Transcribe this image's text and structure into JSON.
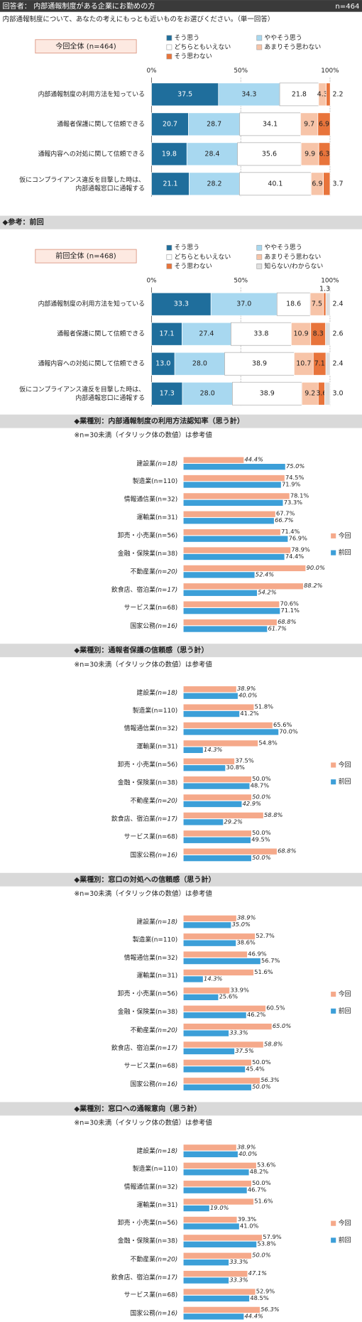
{
  "header": {
    "title": "回答者： 内部通報制度がある企業にお勤めの方",
    "n": "n=464"
  },
  "question": "内部通報制度について、あなたの考えにもっとも近いものをお選びください。（単一回答）",
  "chart_data": [
    {
      "type": "stacked_bar",
      "title": "今回全体 (n=464)",
      "categories": [
        "内部通報制度の利用方法を知っている",
        "通報者保護に関して信頼できる",
        "通報内容への対処に関して信頼できる",
        "仮にコンプライアンス違反を目撃した時は、\n内部通報窓口に通報する"
      ],
      "xlim": [
        0,
        100
      ],
      "xticks": [
        {
          "value": 0,
          "label": "0%"
        },
        {
          "value": 50,
          "label": "50%"
        },
        {
          "value": 100,
          "label": "100%"
        }
      ],
      "grid": true,
      "series": [
        {
          "name": "そう思う",
          "color": "#1f6e9c",
          "values": [
            37.5,
            20.7,
            19.8,
            21.1
          ],
          "value_labels": [
            "37.5",
            "20.7",
            "19.8",
            "21.1"
          ]
        },
        {
          "name": "ややそう思う",
          "color": "#a8d8f0",
          "values": [
            34.3,
            28.7,
            28.4,
            28.2
          ],
          "value_labels": [
            "34.3",
            "28.7",
            "28.4",
            "28.2"
          ]
        },
        {
          "name": "どちらともいえない",
          "color": "#ffffff",
          "values": [
            21.8,
            34.1,
            35.6,
            40.1
          ],
          "value_labels": [
            "21.8",
            "34.1",
            "35.6",
            "40.1"
          ]
        },
        {
          "name": "あまりそう思わない",
          "color": "#f7c4a8",
          "values": [
            4.3,
            9.7,
            9.9,
            6.9
          ],
          "value_labels": [
            "4.3",
            "9.7",
            "9.9",
            "6.9"
          ]
        },
        {
          "name": "そう思わない",
          "color": "#e8743b",
          "values": [
            2.2,
            6.9,
            6.3,
            3.7
          ],
          "value_labels": [
            "2.2",
            "6.9",
            "6.3",
            "3.7"
          ]
        }
      ]
    },
    {
      "type": "stacked_bar",
      "heading": "◆参考：前回",
      "title": "前回全体 (n=468)",
      "categories": [
        "内部通報制度の利用方法を知っている",
        "通報者保護に関して信頼できる",
        "通報内容への対処に関して信頼できる",
        "仮にコンプライアンス違反を目撃した時は、\n内部通報窓口に通報する"
      ],
      "xlim": [
        0,
        100
      ],
      "xticks": [
        {
          "value": 0,
          "label": "0%"
        },
        {
          "value": 50,
          "label": "50%"
        },
        {
          "value": 100,
          "label": "100%"
        }
      ],
      "grid": true,
      "series": [
        {
          "name": "そう思う",
          "color": "#1f6e9c",
          "values": [
            33.3,
            17.1,
            13.0,
            17.3
          ],
          "value_labels": [
            "33.3",
            "17.1",
            "13.0",
            "17.3"
          ]
        },
        {
          "name": "ややそう思う",
          "color": "#a8d8f0",
          "values": [
            37.0,
            27.4,
            28.0,
            28.0
          ],
          "value_labels": [
            "37.0",
            "27.4",
            "28.0",
            "28.0"
          ]
        },
        {
          "name": "どちらともいえない",
          "color": "#ffffff",
          "values": [
            18.6,
            33.8,
            38.9,
            38.9
          ],
          "value_labels": [
            "18.6",
            "33.8",
            "38.9",
            "38.9"
          ]
        },
        {
          "name": "あまりそう思わない",
          "color": "#f7c4a8",
          "values": [
            7.5,
            10.9,
            10.7,
            9.2
          ],
          "value_labels": [
            "7.5",
            "10.9",
            "10.7",
            "9.2"
          ]
        },
        {
          "name": "そう思わない",
          "color": "#e8743b",
          "values": [
            1.3,
            8.3,
            7.1,
            3.6
          ],
          "value_labels": [
            "1.3",
            "8.3",
            "7.1",
            "3.6"
          ]
        },
        {
          "name": "知らない/わからない",
          "color": "#e0e0e0",
          "values": [
            2.4,
            2.6,
            2.4,
            3.0
          ],
          "value_labels": [
            "2.4",
            "2.6",
            "2.4",
            "3.0"
          ]
        }
      ]
    },
    {
      "type": "bar",
      "title": "◆業種別：内部通報制度の利用方法認知率（思う計）",
      "note": "※n=30未満（イタリック体の数値）は参考値",
      "categories": [
        "建設業(n=18)",
        "製造業(n=110)",
        "情報通信業(n=32)",
        "運輸業(n=31)",
        "卸売・小売業(n=56)",
        "金融・保険業(n=38)",
        "不動産業(n=20)",
        "飲食店、宿泊業(n=17)",
        "サービス業(n=68)",
        "国家公務(n=16)"
      ],
      "category_italic": [
        true,
        false,
        false,
        false,
        false,
        false,
        true,
        true,
        false,
        true
      ],
      "xlim": [
        0,
        100
      ],
      "series": [
        {
          "name": "今回",
          "color": "#f5a98a",
          "values": [
            44.4,
            74.5,
            78.1,
            67.7,
            71.4,
            78.9,
            90.0,
            88.2,
            70.6,
            68.8
          ],
          "value_labels": [
            "44.4%",
            "74.5%",
            "78.1%",
            "67.7%",
            "71.4%",
            "78.9%",
            "90.0%",
            "88.2%",
            "70.6%",
            "68.8%"
          ],
          "italic": [
            true,
            false,
            false,
            false,
            false,
            false,
            true,
            true,
            false,
            true
          ]
        },
        {
          "name": "前回",
          "color": "#3c9fd8",
          "values": [
            75.0,
            71.9,
            73.3,
            66.7,
            76.9,
            74.4,
            52.4,
            54.2,
            71.1,
            61.7
          ],
          "value_labels": [
            "75.0%",
            "71.9%",
            "73.3%",
            "66.7%",
            "76.9%",
            "74.4%",
            "52.4%",
            "54.2%",
            "71.1%",
            "61.7%"
          ],
          "italic": [
            true,
            false,
            false,
            true,
            false,
            false,
            true,
            true,
            false,
            true
          ]
        }
      ]
    },
    {
      "type": "bar",
      "title": "◆業種別：通報者保護の信頼感（思う計）",
      "note": "※n=30未満（イタリック体の数値）は参考値",
      "categories": [
        "建設業(n=18)",
        "製造業(n=110)",
        "情報通信業(n=32)",
        "運輸業(n=31)",
        "卸売・小売業(n=56)",
        "金融・保険業(n=38)",
        "不動産業(n=20)",
        "飲食店、宿泊業(n=17)",
        "サービス業(n=68)",
        "国家公務(n=16)"
      ],
      "category_italic": [
        true,
        false,
        false,
        false,
        false,
        false,
        true,
        true,
        false,
        true
      ],
      "xlim": [
        0,
        100
      ],
      "series": [
        {
          "name": "今回",
          "color": "#f5a98a",
          "values": [
            38.9,
            51.8,
            65.6,
            54.8,
            37.5,
            50.0,
            50.0,
            58.8,
            50.0,
            68.8
          ],
          "value_labels": [
            "38.9%",
            "51.8%",
            "65.6%",
            "54.8%",
            "37.5%",
            "50.0%",
            "50.0%",
            "58.8%",
            "50.0%",
            "68.8%"
          ],
          "italic": [
            true,
            false,
            false,
            false,
            false,
            false,
            true,
            true,
            false,
            true
          ]
        },
        {
          "name": "前回",
          "color": "#3c9fd8",
          "values": [
            40.0,
            41.2,
            70.0,
            14.3,
            30.8,
            48.7,
            42.9,
            29.2,
            49.5,
            50.0
          ],
          "value_labels": [
            "40.0%",
            "41.2%",
            "70.0%",
            "14.3%",
            "30.8%",
            "48.7%",
            "42.9%",
            "29.2%",
            "49.5%",
            "50.0%"
          ],
          "italic": [
            true,
            false,
            false,
            true,
            false,
            false,
            true,
            true,
            false,
            true
          ]
        }
      ]
    },
    {
      "type": "bar",
      "title": "◆業種別：窓口の対処への信頼感（思う計）",
      "note": "※n=30未満（イタリック体の数値）は参考値",
      "categories": [
        "建設業(n=18)",
        "製造業(n=110)",
        "情報通信業(n=32)",
        "運輸業(n=31)",
        "卸売・小売業(n=56)",
        "金融・保険業(n=38)",
        "不動産業(n=20)",
        "飲食店、宿泊業(n=17)",
        "サービス業(n=68)",
        "国家公務(n=16)"
      ],
      "category_italic": [
        true,
        false,
        false,
        false,
        false,
        false,
        true,
        true,
        false,
        true
      ],
      "xlim": [
        0,
        100
      ],
      "series": [
        {
          "name": "今回",
          "color": "#f5a98a",
          "values": [
            38.9,
            52.7,
            46.9,
            51.6,
            33.9,
            60.5,
            65.0,
            58.8,
            50.0,
            56.3
          ],
          "value_labels": [
            "38.9%",
            "52.7%",
            "46.9%",
            "51.6%",
            "33.9%",
            "60.5%",
            "65.0%",
            "58.8%",
            "50.0%",
            "56.3%"
          ],
          "italic": [
            true,
            false,
            false,
            false,
            false,
            false,
            true,
            true,
            false,
            true
          ]
        },
        {
          "name": "前回",
          "color": "#3c9fd8",
          "values": [
            35.0,
            38.6,
            56.7,
            14.3,
            25.6,
            46.2,
            33.3,
            37.5,
            45.4,
            50.0
          ],
          "value_labels": [
            "35.0%",
            "38.6%",
            "56.7%",
            "14.3%",
            "25.6%",
            "46.2%",
            "33.3%",
            "37.5%",
            "45.4%",
            "50.0%"
          ],
          "italic": [
            true,
            false,
            false,
            true,
            false,
            false,
            true,
            true,
            false,
            true
          ]
        }
      ]
    },
    {
      "type": "bar",
      "title": "◆業種別：窓口への通報意向（思う計）",
      "note": "※n=30未満（イタリック体の数値）は参考値",
      "categories": [
        "建設業(n=18)",
        "製造業(n=110)",
        "情報通信業(n=32)",
        "運輸業(n=31)",
        "卸売・小売業(n=56)",
        "金融・保険業(n=38)",
        "不動産業(n=20)",
        "飲食店、宿泊業(n=17)",
        "サービス業(n=68)",
        "国家公務(n=16)"
      ],
      "category_italic": [
        true,
        false,
        false,
        false,
        false,
        false,
        true,
        true,
        false,
        true
      ],
      "xlim": [
        0,
        100
      ],
      "series": [
        {
          "name": "今回",
          "color": "#f5a98a",
          "values": [
            38.9,
            53.6,
            50.0,
            51.6,
            39.3,
            57.9,
            50.0,
            47.1,
            52.9,
            56.3
          ],
          "value_labels": [
            "38.9%",
            "53.6%",
            "50.0%",
            "51.6%",
            "39.3%",
            "57.9%",
            "50.0%",
            "47.1%",
            "52.9%",
            "56.3%"
          ],
          "italic": [
            true,
            false,
            false,
            false,
            false,
            false,
            true,
            true,
            false,
            true
          ]
        },
        {
          "name": "前回",
          "color": "#3c9fd8",
          "values": [
            40.0,
            48.2,
            46.7,
            19.0,
            41.0,
            53.8,
            33.3,
            33.3,
            48.5,
            44.4
          ],
          "value_labels": [
            "40.0%",
            "48.2%",
            "46.7%",
            "19.0%",
            "41.0%",
            "53.8%",
            "33.3%",
            "33.3%",
            "48.5%",
            "44.4%"
          ],
          "italic": [
            true,
            false,
            false,
            true,
            false,
            false,
            true,
            true,
            false,
            true
          ]
        }
      ]
    }
  ]
}
